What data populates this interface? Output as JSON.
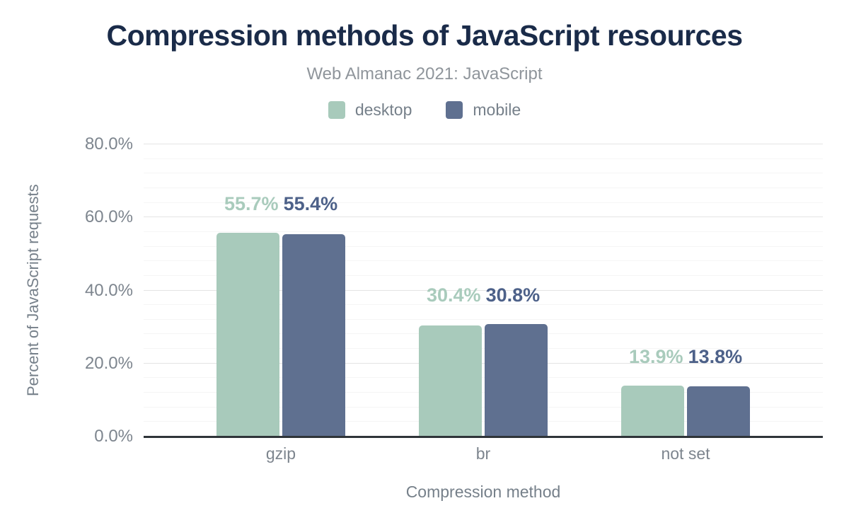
{
  "colors": {
    "title": "#1a2b49",
    "subtitle": "#8f959b",
    "legend_text": "#76808a",
    "tick_text": "#7d858e",
    "axis_title_text": "#76808a",
    "axis_line": "#2f3439",
    "gridline_major": "#e4e4e4",
    "gridline_minor": "#f5f5f5",
    "background": "#ffffff"
  },
  "chart_data": {
    "type": "bar",
    "title": "Compression methods of JavaScript resources",
    "subtitle": "Web Almanac 2021: JavaScript",
    "xlabel": "Compression method",
    "ylabel": "Percent of JavaScript requests",
    "categories": [
      "gzip",
      "br",
      "not set"
    ],
    "series": [
      {
        "name": "desktop",
        "color": "#a8cabb",
        "label_color": "#a9cbbc",
        "values": [
          55.7,
          30.4,
          13.9
        ]
      },
      {
        "name": "mobile",
        "color": "#5f7090",
        "label_color": "#4d6189",
        "values": [
          55.4,
          30.8,
          13.8
        ]
      }
    ],
    "data_labels": [
      [
        "55.7%",
        "30.4%",
        "13.9%"
      ],
      [
        "55.4%",
        "30.8%",
        "13.8%"
      ]
    ],
    "ylim": [
      0,
      80
    ],
    "yticks": [
      {
        "value": 80,
        "label": "80.0%"
      },
      {
        "value": 60,
        "label": "60.0%"
      },
      {
        "value": 40,
        "label": "40.0%"
      },
      {
        "value": 20,
        "label": "20.0%"
      },
      {
        "value": 0,
        "label": "0.0%"
      }
    ],
    "grid": {
      "major_step": 20,
      "minor_step": 4,
      "grid_on": true
    },
    "legend_position": "top",
    "bar_corner_radius": 5
  }
}
